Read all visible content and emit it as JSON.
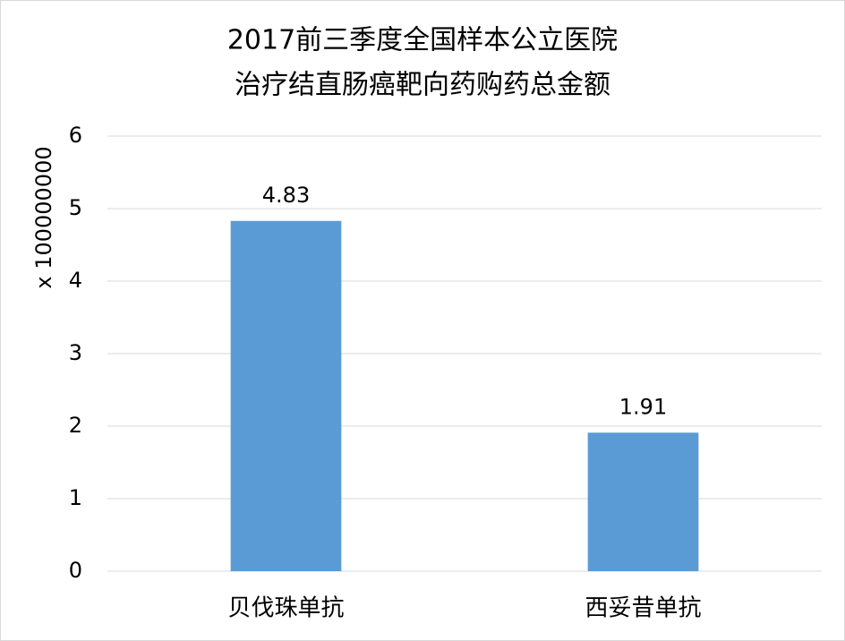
{
  "chart_data": {
    "type": "bar",
    "title": [
      "2017前三季度全国样本公立医院",
      "治疗结直肠癌靶向药购药总金额"
    ],
    "y_label": "x 100000000",
    "categories": [
      "贝伐珠单抗",
      "西妥昔单抗"
    ],
    "values": [
      4.83,
      1.91
    ],
    "color": "#5b9bd5",
    "ylim": [
      0,
      6
    ],
    "yticks": [
      0,
      1,
      2,
      3,
      4,
      5,
      6
    ],
    "grid": true,
    "data_labels": true
  }
}
